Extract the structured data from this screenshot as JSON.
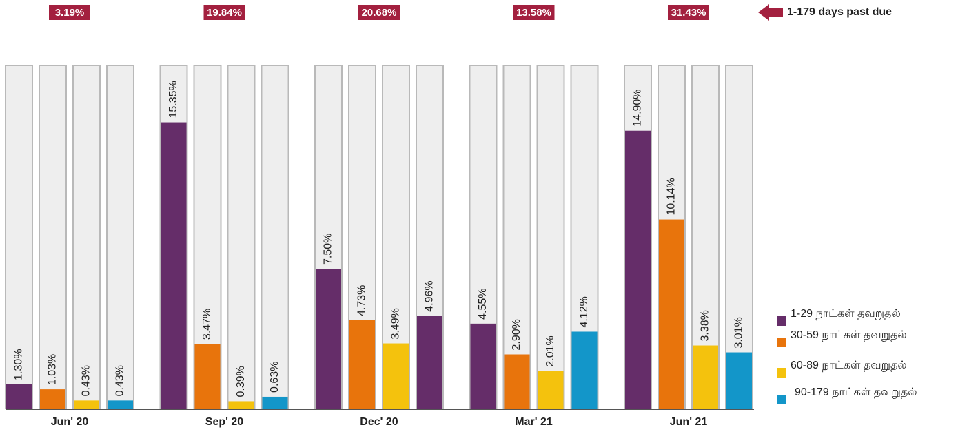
{
  "chart_data": {
    "type": "bar",
    "categories": [
      "Jun' 20",
      "Sep' 20",
      "Dec' 20",
      "Mar' 21",
      "Jun' 21"
    ],
    "series": [
      {
        "name": "1-29 நாட்கள் தவறுதல்",
        "color": "#652d69",
        "values": [
          1.3,
          15.35,
          7.5,
          4.55,
          14.9
        ],
        "value_labels": [
          "1.30%",
          "15.35%",
          "7.50%",
          "4.55%",
          "14.90%"
        ]
      },
      {
        "name": "30-59 நாட்கள் தவறுதல்",
        "color": "#e8740c",
        "values": [
          1.03,
          3.47,
          4.73,
          2.9,
          10.14
        ],
        "value_labels": [
          "1.03%",
          "3.47%",
          "4.73%",
          "2.90%",
          "10.14%"
        ]
      },
      {
        "name": "60-89 நாட்கள் தவறுதல்",
        "color": "#f4c20d",
        "values": [
          0.43,
          0.39,
          3.49,
          2.01,
          3.38
        ],
        "value_labels": [
          "0.43%",
          "0.39%",
          "3.49%",
          "2.01%",
          "3.38%"
        ]
      },
      {
        "name": "90-179 நாட்கள் தவறுதல்",
        "color": "#1396c9",
        "value_colors": [
          null,
          null,
          "#652d69",
          null,
          null
        ],
        "values": [
          0.43,
          0.63,
          4.96,
          4.12,
          3.01
        ],
        "value_labels": [
          "0.43%",
          "0.63%",
          "4.96%",
          "4.12%",
          "3.01%"
        ]
      }
    ],
    "totals": {
      "name": "1-179 days past due",
      "color": "#a3203f",
      "values": [
        3.19,
        19.84,
        20.68,
        13.58,
        31.43
      ],
      "value_labels": [
        "3.19%",
        "19.84%",
        "20.68%",
        "13.58%",
        "31.43%"
      ]
    },
    "ylim": [
      0,
      18.4
    ]
  }
}
